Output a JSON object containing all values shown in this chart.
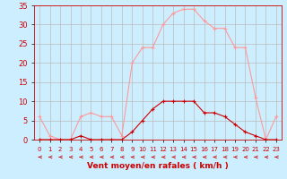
{
  "x": [
    0,
    1,
    2,
    3,
    4,
    5,
    6,
    7,
    8,
    9,
    10,
    11,
    12,
    13,
    14,
    15,
    16,
    17,
    18,
    19,
    20,
    21,
    22,
    23
  ],
  "wind_avg": [
    0,
    0,
    0,
    0,
    1,
    0,
    0,
    0,
    0,
    2,
    5,
    8,
    10,
    10,
    10,
    10,
    7,
    7,
    6,
    4,
    2,
    1,
    0,
    0
  ],
  "wind_gust": [
    6,
    1,
    0,
    0,
    6,
    7,
    6,
    6,
    1,
    20,
    24,
    24,
    30,
    33,
    34,
    34,
    31,
    29,
    29,
    24,
    24,
    11,
    0,
    6
  ],
  "bg_color": "#cceeff",
  "grid_color": "#bbbbbb",
  "line_avg_color": "#cc0000",
  "line_gust_color": "#ff9999",
  "xlabel": "Vent moyen/en rafales ( km/h )",
  "xlabel_color": "#cc0000",
  "tick_color": "#cc0000",
  "ylim": [
    0,
    35
  ],
  "yticks": [
    0,
    5,
    10,
    15,
    20,
    25,
    30,
    35
  ],
  "xlim": [
    -0.5,
    23.5
  ]
}
